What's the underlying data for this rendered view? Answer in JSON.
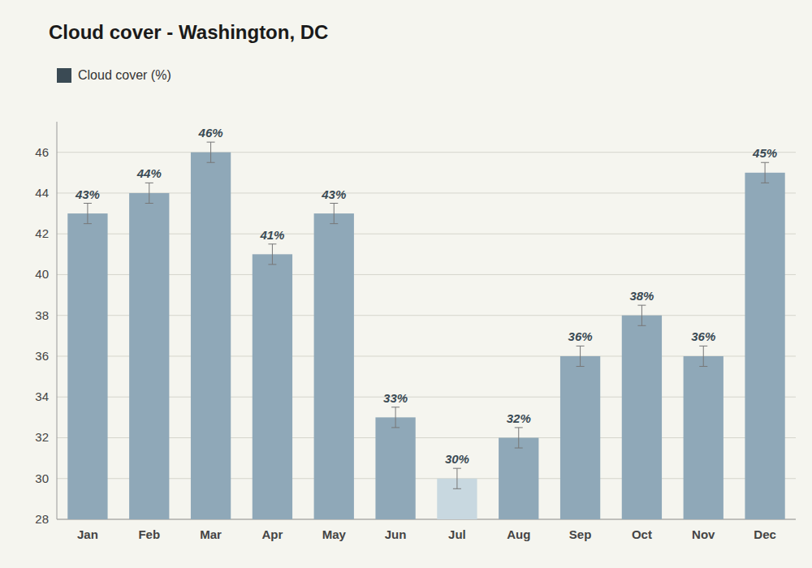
{
  "chart_data": {
    "type": "bar",
    "title": "Cloud cover - Washington, DC",
    "categories": [
      "Jan",
      "Feb",
      "Mar",
      "Apr",
      "May",
      "Jun",
      "Jul",
      "Aug",
      "Sep",
      "Oct",
      "Nov",
      "Dec"
    ],
    "series": [
      {
        "name": "Cloud cover (%)",
        "color": "#3a4a54",
        "colors": [
          "#8fa8b8",
          "#8fa8b8",
          "#8fa8b8",
          "#8fa8b8",
          "#8fa8b8",
          "#8fa8b8",
          "#c8d8e0",
          "#8fa8b8",
          "#8fa8b8",
          "#8fa8b8",
          "#8fa8b8",
          "#8fa8b8"
        ],
        "values": [
          43,
          44,
          46,
          41,
          43,
          33,
          30,
          32,
          36,
          38,
          36,
          45
        ],
        "value_labels": [
          "43%",
          "44%",
          "46%",
          "41%",
          "43%",
          "33%",
          "30%",
          "32%",
          "36%",
          "38%",
          "36%",
          "45%"
        ],
        "errors": [
          0.5,
          0.5,
          0.5,
          0.5,
          0.5,
          0.5,
          0.5,
          0.5,
          0.5,
          0.5,
          0.5,
          0.5
        ]
      }
    ],
    "ylim": [
      28,
      47.5
    ],
    "yticks": [
      28,
      30,
      32,
      34,
      36,
      38,
      40,
      42,
      44,
      46
    ],
    "grid": true,
    "legend": "upper left",
    "data_labels": true
  }
}
